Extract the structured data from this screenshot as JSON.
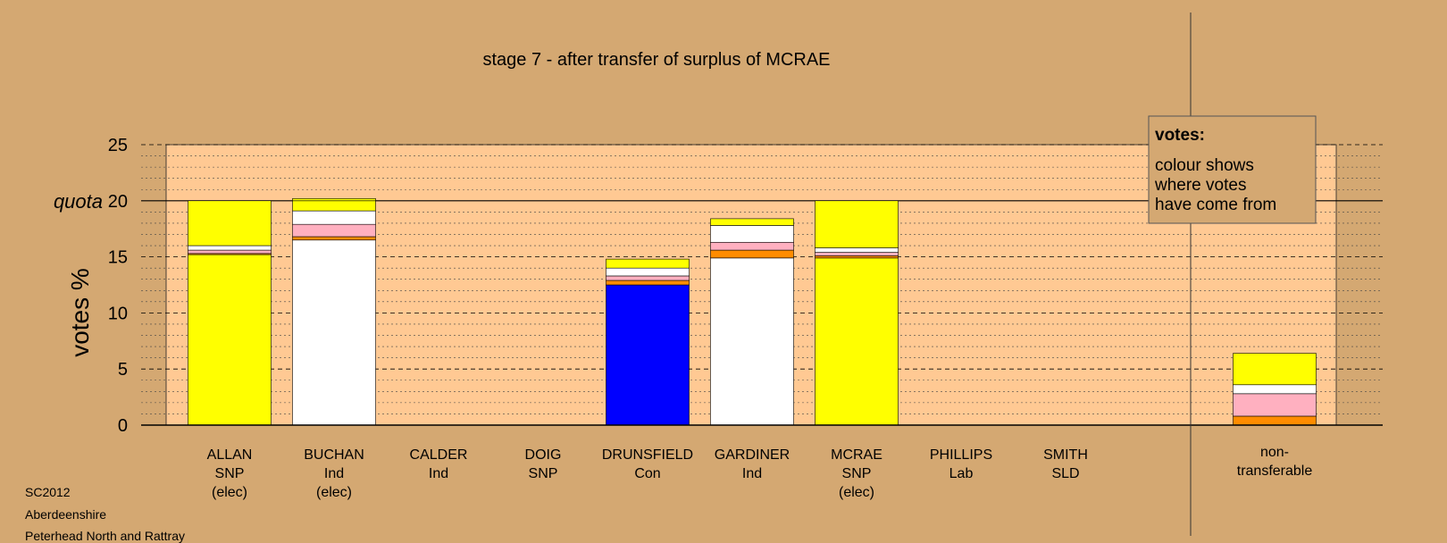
{
  "chart_data": {
    "type": "bar",
    "title": "stage 7 - after transfer of surplus of MCRAE",
    "ylabel": "votes %",
    "ylim": [
      0,
      25
    ],
    "yticks": [
      "0",
      "5",
      "10",
      "15",
      "20",
      "25"
    ],
    "quota_label": "quota",
    "quota_value": 20,
    "grid": true,
    "legend_box": {
      "title": "votes:",
      "lines": [
        "colour shows",
        "where votes",
        "have come from"
      ]
    },
    "candidates": [
      {
        "label": [
          "ALLAN",
          "SNP",
          "(elec)"
        ],
        "segments": [
          {
            "color": "#ffff00",
            "value": 15.2
          },
          {
            "color": "#ff8c00",
            "value": 0.1
          },
          {
            "color": "#ffb0c0",
            "value": 0.3
          },
          {
            "color": "#ffffff",
            "value": 0.4
          },
          {
            "color": "#ffff00",
            "value": 4.0
          }
        ]
      },
      {
        "label": [
          "BUCHAN",
          "Ind",
          "(elec)"
        ],
        "segments": [
          {
            "color": "#ffffff",
            "value": 16.5
          },
          {
            "color": "#ff8c00",
            "value": 0.3
          },
          {
            "color": "#ffb0c0",
            "value": 1.1
          },
          {
            "color": "#ffffff",
            "value": 1.2
          },
          {
            "color": "#ffff00",
            "value": 0.9
          },
          {
            "color": "#ffff00",
            "value": 0.2
          }
        ]
      },
      {
        "label": [
          "CALDER",
          "Ind"
        ],
        "segments": []
      },
      {
        "label": [
          "DOIG",
          "SNP"
        ],
        "segments": []
      },
      {
        "label": [
          "DRUNSFIELD",
          "Con"
        ],
        "segments": [
          {
            "color": "#0000ff",
            "value": 12.5
          },
          {
            "color": "#ff8c00",
            "value": 0.4
          },
          {
            "color": "#ffb0c0",
            "value": 0.4
          },
          {
            "color": "#ffffff",
            "value": 0.7
          },
          {
            "color": "#ffff00",
            "value": 0.8
          }
        ]
      },
      {
        "label": [
          "GARDINER",
          "Ind"
        ],
        "segments": [
          {
            "color": "#ffffff",
            "value": 14.9
          },
          {
            "color": "#ff8c00",
            "value": 0.7
          },
          {
            "color": "#ffb0c0",
            "value": 0.7
          },
          {
            "color": "#ffffff",
            "value": 1.5
          },
          {
            "color": "#ffff00",
            "value": 0.6
          }
        ]
      },
      {
        "label": [
          "MCRAE",
          "SNP",
          "(elec)"
        ],
        "segments": [
          {
            "color": "#ffff00",
            "value": 14.9
          },
          {
            "color": "#ff8c00",
            "value": 0.2
          },
          {
            "color": "#ffb0c0",
            "value": 0.3
          },
          {
            "color": "#ffffff",
            "value": 0.4
          },
          {
            "color": "#ffff00",
            "value": 4.2
          }
        ]
      },
      {
        "label": [
          "PHILLIPS",
          "Lab"
        ],
        "segments": []
      },
      {
        "label": [
          "SMITH",
          "SLD"
        ],
        "segments": []
      },
      {
        "label": [
          "non-",
          "transferable"
        ],
        "segments": [
          {
            "color": "#ff8c00",
            "value": 0.8
          },
          {
            "color": "#ffb0c0",
            "value": 2.0
          },
          {
            "color": "#ffffff",
            "value": 0.8
          },
          {
            "color": "#ffff00",
            "value": 2.8
          }
        ]
      }
    ]
  },
  "footer": {
    "line1": "SC2012",
    "line2": "Aberdeenshire",
    "line3": "Peterhead North and Rattray"
  }
}
